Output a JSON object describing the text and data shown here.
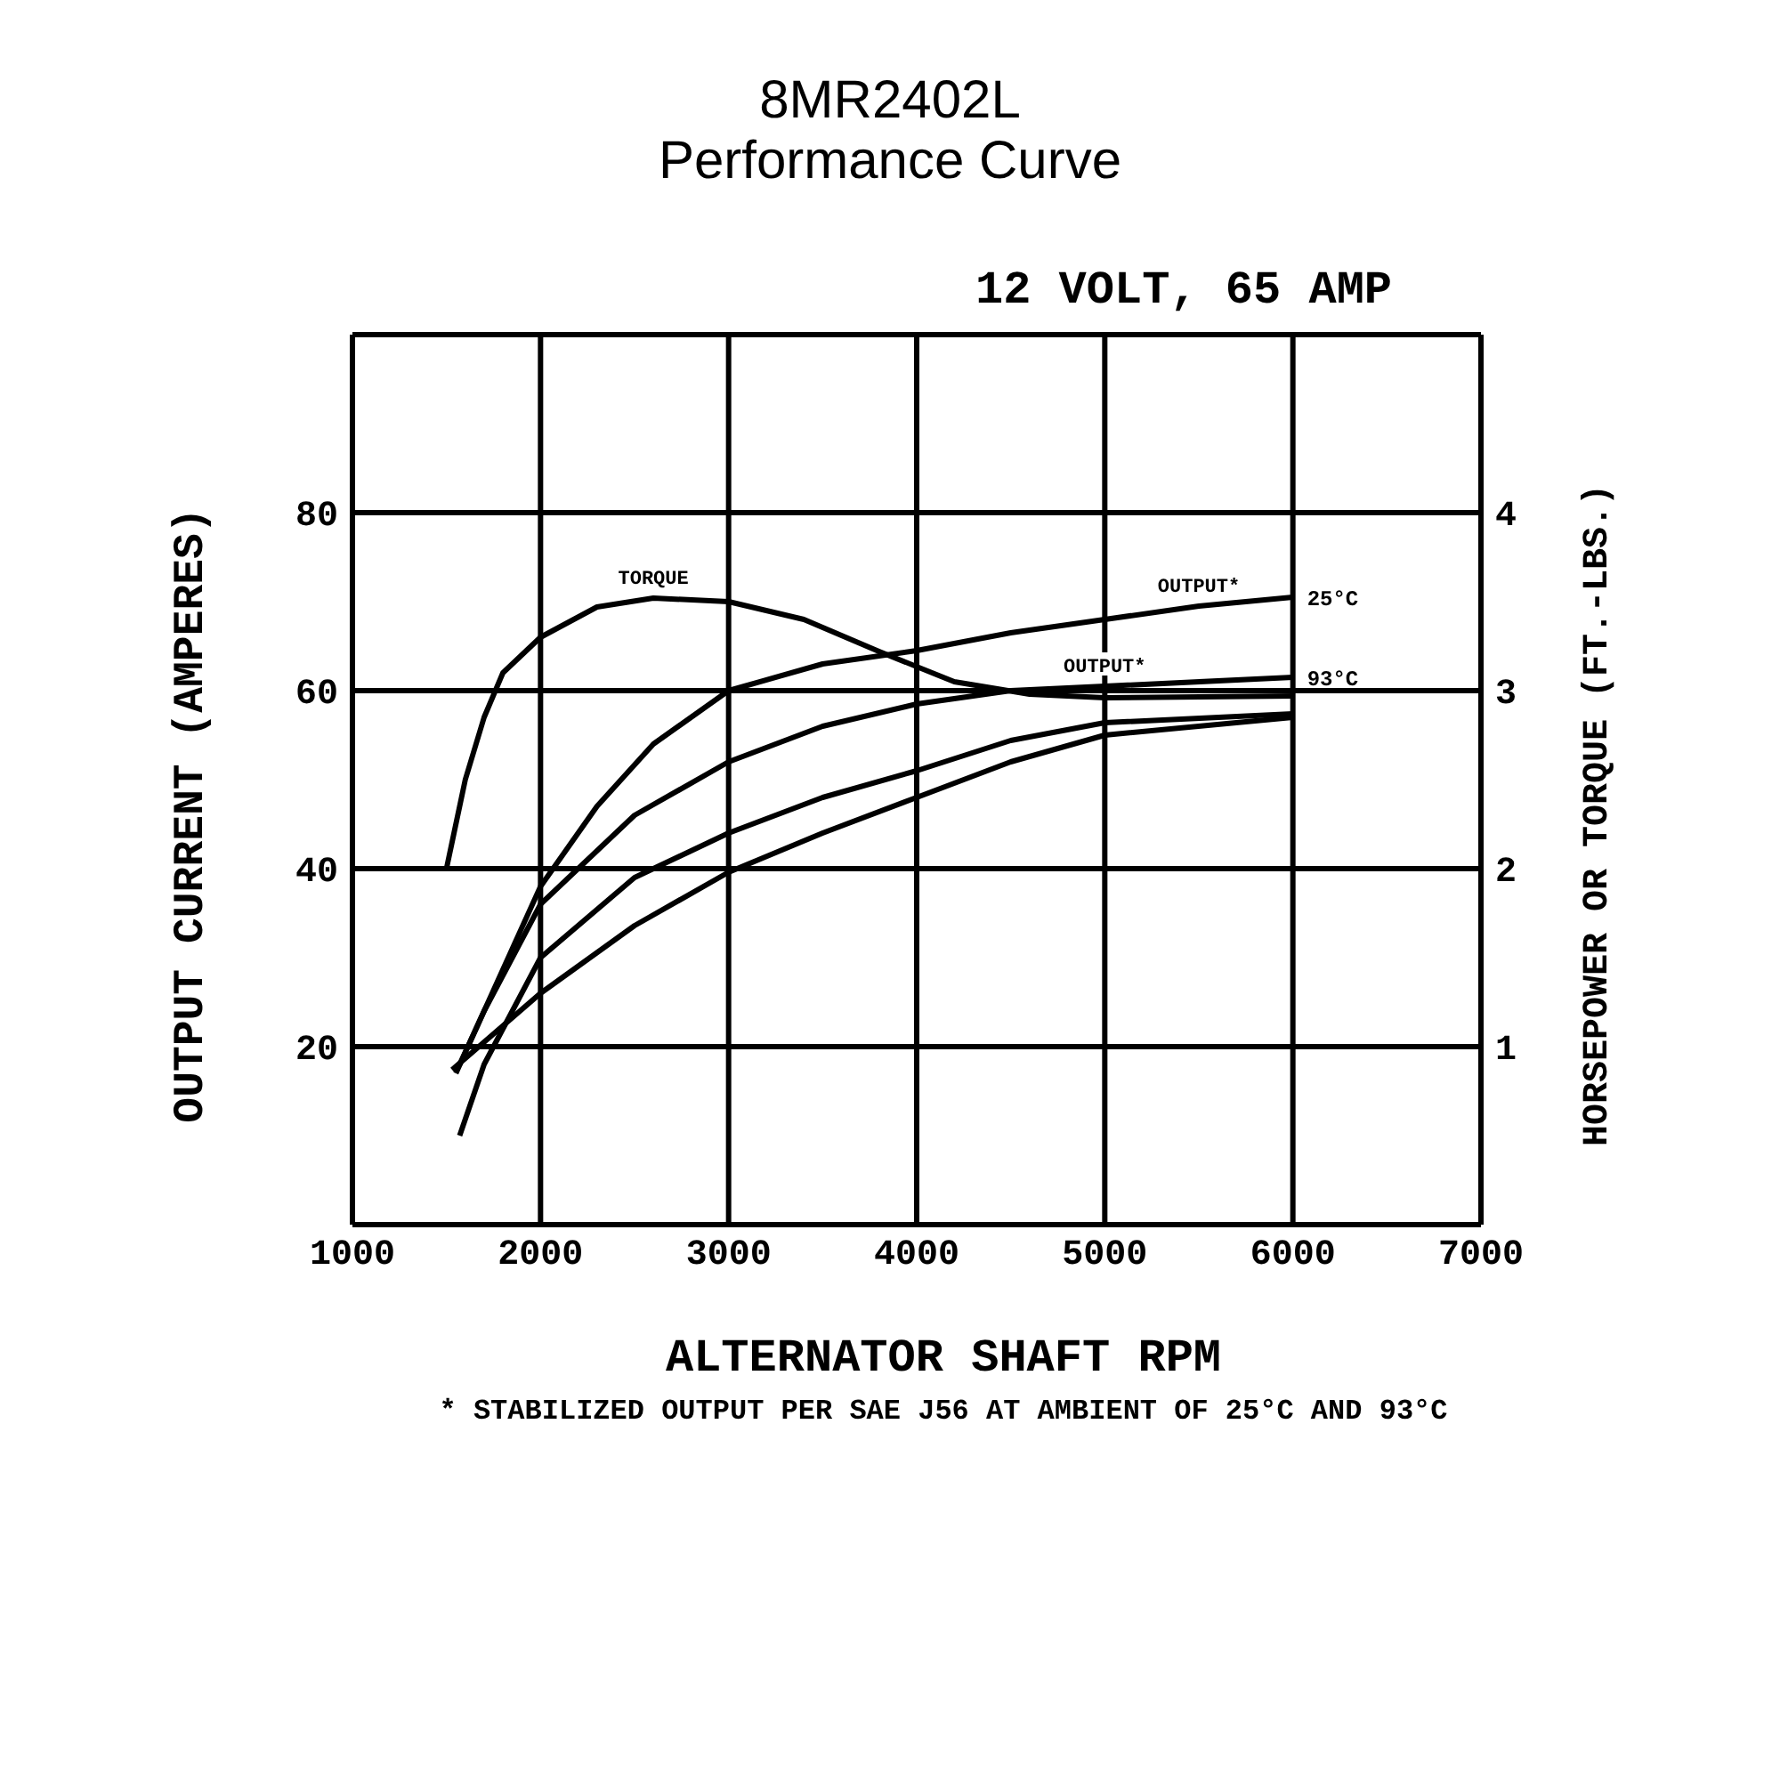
{
  "chart_data": {
    "type": "line",
    "title": "8MR2402L",
    "subtitle": "Performance Curve",
    "xlabel": "ALTERNATOR SHAFT RPM",
    "ylabel": "OUTPUT CURRENT (AMPERES)",
    "y2label": "HORSEPOWER OR TORQUE (FT.-LBS.)",
    "annotations": [
      "12 VOLT, 65 AMP",
      "* STABILIZED OUTPUT PER SAE J56 AT AMBIENT OF 25°C AND 93°C",
      {
        "text": "25°C",
        "x": 6000,
        "y": 70.5
      },
      {
        "text": "93°C",
        "x": 6000,
        "y": 61.5
      }
    ],
    "xlim": [
      1000,
      7000
    ],
    "xticks": [
      1000,
      2000,
      3000,
      4000,
      5000,
      6000,
      7000
    ],
    "ylim": [
      0,
      100
    ],
    "yticks": [
      20,
      40,
      60,
      80
    ],
    "y2lim": [
      0,
      5
    ],
    "y2ticks": [
      1,
      2,
      3,
      4
    ],
    "grid": true,
    "marker": "none",
    "line_style": "solid",
    "series": [
      {
        "name": "TORQUE",
        "color": "#000000",
        "axis": "y2",
        "x": [
          1500,
          1600,
          1700,
          1800,
          2000,
          2300,
          2600,
          3000,
          3400,
          3800,
          4200,
          4600,
          5000,
          6000
        ],
        "values": [
          2.0,
          2.5,
          2.85,
          3.1,
          3.3,
          3.47,
          3.52,
          3.5,
          3.4,
          3.22,
          3.05,
          2.98,
          2.96,
          2.97
        ]
      },
      {
        "name": "OUTPUT*",
        "color": "#000000",
        "x": [
          1550,
          1700,
          1850,
          2000,
          2300,
          2600,
          3000,
          3500,
          4000,
          4500,
          5000,
          5500,
          6000
        ],
        "values": [
          17,
          24,
          31,
          38,
          47,
          54,
          60,
          63,
          64.5,
          66.5,
          68,
          69.5,
          70.5
        ]
      },
      {
        "name": "OUTPUT*",
        "color": "#000000",
        "x": [
          1570,
          1700,
          2000,
          2500,
          3000,
          3500,
          4000,
          4500,
          5000,
          6000
        ],
        "values": [
          18,
          24,
          36,
          46,
          52,
          56,
          58.5,
          60,
          60.5,
          61.5
        ]
      },
      {
        "color": "#000000",
        "axis": "y2",
        "x": [
          1570,
          1700,
          2000,
          2500,
          3000,
          3500,
          4000,
          4500,
          5000,
          6000
        ],
        "values": [
          0.5,
          0.9,
          1.5,
          1.95,
          2.2,
          2.4,
          2.55,
          2.72,
          2.82,
          2.87
        ]
      },
      {
        "color": "#000000",
        "axis": "y2",
        "x": [
          1530,
          2000,
          2500,
          3000,
          3500,
          4000,
          4500,
          5000,
          6000
        ],
        "values": [
          0.87,
          1.3,
          1.68,
          1.98,
          2.2,
          2.4,
          2.6,
          2.75,
          2.85
        ]
      }
    ]
  }
}
